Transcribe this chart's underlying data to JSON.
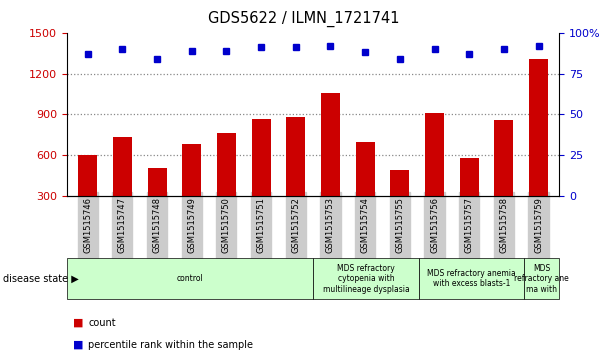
{
  "title": "GDS5622 / ILMN_1721741",
  "samples": [
    "GSM1515746",
    "GSM1515747",
    "GSM1515748",
    "GSM1515749",
    "GSM1515750",
    "GSM1515751",
    "GSM1515752",
    "GSM1515753",
    "GSM1515754",
    "GSM1515755",
    "GSM1515756",
    "GSM1515757",
    "GSM1515758",
    "GSM1515759"
  ],
  "counts": [
    605,
    730,
    505,
    680,
    760,
    865,
    880,
    1060,
    700,
    490,
    910,
    580,
    860,
    1310
  ],
  "percentile_ranks": [
    87,
    90,
    84,
    89,
    89,
    91,
    91,
    92,
    88,
    84,
    90,
    87,
    90,
    92
  ],
  "bar_color": "#cc0000",
  "dot_color": "#0000cc",
  "left_ylim": [
    300,
    1500
  ],
  "left_yticks": [
    300,
    600,
    900,
    1200,
    1500
  ],
  "right_ylim": [
    0,
    100
  ],
  "right_yticks": [
    0,
    25,
    50,
    75,
    100
  ],
  "right_yticklabels": [
    "0",
    "25",
    "50",
    "75",
    "100%"
  ],
  "grid_values": [
    600,
    900,
    1200
  ],
  "grid_color": "#888888",
  "disease_groups": [
    {
      "label": "control",
      "start": 0,
      "end": 7,
      "color": "#ccffcc"
    },
    {
      "label": "MDS refractory\ncytopenia with\nmultilineage dysplasia",
      "start": 7,
      "end": 10,
      "color": "#ccffcc"
    },
    {
      "label": "MDS refractory anemia\nwith excess blasts-1",
      "start": 10,
      "end": 13,
      "color": "#ccffcc"
    },
    {
      "label": "MDS\nrefractory ane\nma with",
      "start": 13,
      "end": 14,
      "color": "#ccffcc"
    }
  ],
  "disease_state_label": "disease state",
  "legend_count_label": "count",
  "legend_percentile_label": "percentile rank within the sample",
  "tick_label_color_left": "#cc0000",
  "tick_label_color_right": "#0000cc",
  "bg_color": "#ffffff",
  "tick_area_bg": "#cccccc"
}
